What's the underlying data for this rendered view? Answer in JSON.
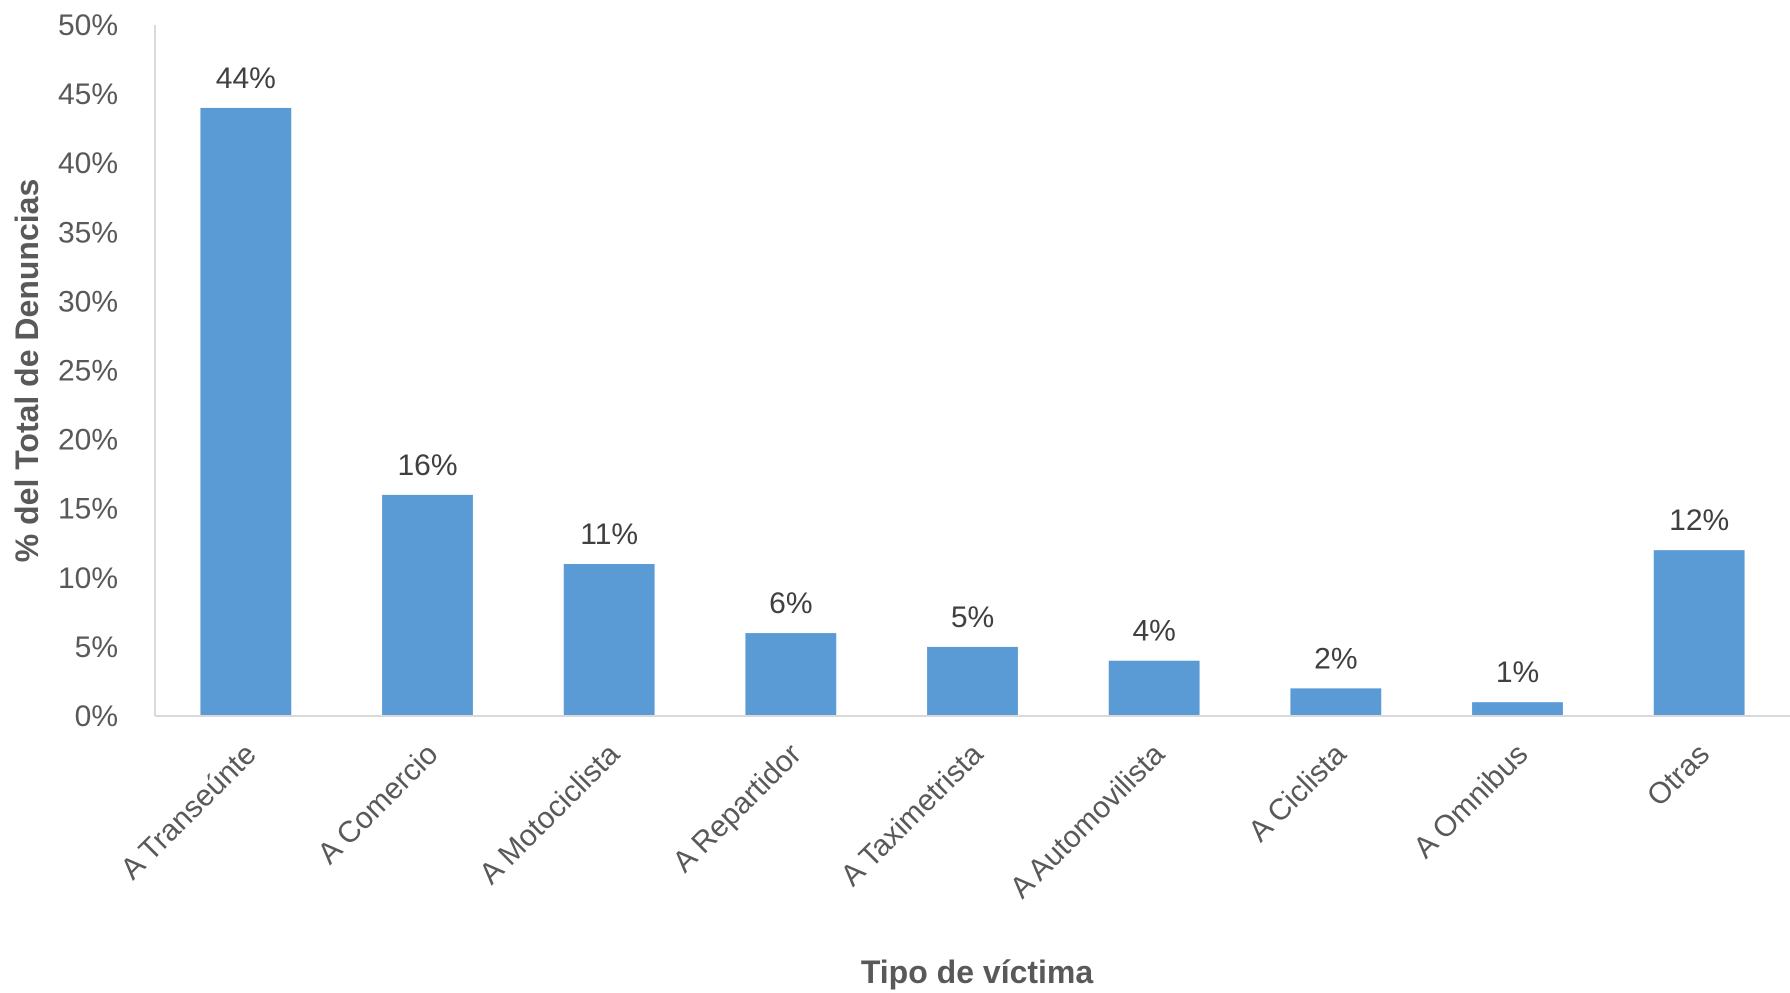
{
  "chart_data": {
    "type": "bar",
    "title": "",
    "xlabel": "Tipo de víctima",
    "ylabel": "% del Total de Denuncias",
    "categories": [
      "A Transeúnte",
      "A Comercio",
      "A Motociclista",
      "A Repartidor",
      "A Taximetrista",
      "A Automovilista",
      "A Ciclista",
      "A Omnibus",
      "Otras"
    ],
    "values": [
      44,
      16,
      11,
      6,
      5,
      4,
      2,
      1,
      12
    ],
    "data_labels": [
      "44%",
      "16%",
      "11%",
      "6%",
      "5%",
      "4%",
      "2%",
      "1%",
      "12%"
    ],
    "ylim": [
      0,
      50
    ],
    "yticks": [
      0,
      5,
      10,
      15,
      20,
      25,
      30,
      35,
      40,
      45,
      50
    ],
    "ytick_labels": [
      "0%",
      "5%",
      "10%",
      "15%",
      "20%",
      "25%",
      "30%",
      "35%",
      "40%",
      "45%",
      "50%"
    ],
    "grid": false,
    "legend": "none",
    "colors": {
      "bar": "#5b9bd5",
      "axis": "#d9d9d9"
    }
  }
}
